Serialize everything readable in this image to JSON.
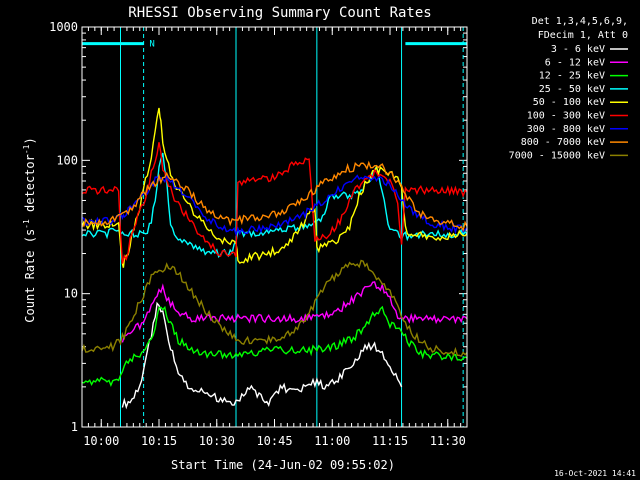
{
  "chart_data": {
    "type": "line",
    "title": "RHESSI Observing Summary Count Rates",
    "xlabel": "Start Time (24-Jun-02 09:55:02)",
    "ylabel_main": "Count Rate (s",
    "ylabel_sup1": "-1",
    "ylabel_mid": " detector",
    "ylabel_sup2": "-1",
    "ylabel_end": ")",
    "y_scale": "log",
    "ylim": [
      1,
      1000
    ],
    "xlim_min": [
      0,
      100
    ],
    "y_ticks": [
      {
        "value": 1,
        "label": "1"
      },
      {
        "value": 10,
        "label": "10"
      },
      {
        "value": 100,
        "label": "100"
      },
      {
        "value": 1000,
        "label": "1000"
      }
    ],
    "x_ticks": [
      {
        "value": 5,
        "label": "10:00"
      },
      {
        "value": 20,
        "label": "10:15"
      },
      {
        "value": 35,
        "label": "10:30"
      },
      {
        "value": 50,
        "label": "10:45"
      },
      {
        "value": 65,
        "label": "11:00"
      },
      {
        "value": 80,
        "label": "11:15"
      },
      {
        "value": 95,
        "label": "11:30"
      }
    ],
    "legend_header": [
      "Det 1,3,4,5,6,9,",
      "FDecim 1, Att 0"
    ],
    "footer_date": "16-Oct-2021 14:41",
    "night_marker": "N",
    "flags": [
      {
        "x0": 0,
        "x1": 16,
        "y": 750
      },
      {
        "x0": 84,
        "x1": 100,
        "y": 750
      }
    ],
    "dashed_lines": [
      16,
      99
    ],
    "solid_lines": [
      10,
      40,
      61,
      83
    ],
    "series": [
      {
        "name": "3 - 6 keV",
        "color": "#ffffff",
        "x": [
          10.5,
          12,
          14,
          16,
          18,
          19.5,
          21,
          23,
          25,
          28,
          32,
          36,
          40,
          44,
          48,
          52,
          56,
          60,
          64,
          68,
          70,
          72,
          74,
          76,
          78,
          80,
          81.5,
          83
        ],
        "values": [
          1.5,
          1.5,
          1.8,
          2.6,
          5,
          8,
          7,
          4,
          2.5,
          2,
          1.8,
          1.6,
          1.5,
          2,
          1.5,
          2,
          1.8,
          2.2,
          2,
          2.5,
          3,
          3.5,
          4,
          4,
          3.5,
          2.8,
          2.5,
          2
        ]
      },
      {
        "name": "6 - 12 keV",
        "color": "#ff00ff",
        "x": [
          10.5,
          12,
          14,
          16,
          18,
          20,
          21,
          22,
          24,
          26,
          28,
          30,
          32,
          35,
          40,
          45,
          50,
          55,
          60,
          64,
          68,
          72,
          76,
          78,
          80,
          82,
          84,
          86,
          88,
          90,
          92,
          94,
          96,
          98,
          100
        ],
        "values": [
          4.5,
          5,
          5.5,
          6,
          8,
          10,
          11,
          9,
          8,
          7,
          6.5,
          6.5,
          6.5,
          6.5,
          6.5,
          6.5,
          6.5,
          6.5,
          6.5,
          7,
          8,
          10,
          12,
          11,
          9,
          7,
          6.5,
          6.5,
          6.5,
          6.5,
          6.5,
          6.5,
          6.5,
          6.5,
          6.5
        ]
      },
      {
        "name": "12 - 25 keV",
        "color": "#00ff00",
        "x": [
          0,
          2,
          4,
          6,
          8,
          10,
          11,
          13,
          15,
          17,
          19,
          20,
          21,
          23,
          25,
          27,
          29,
          32,
          35,
          40,
          45,
          50,
          55,
          60,
          65,
          70,
          73,
          76,
          78,
          80,
          83,
          86,
          88,
          90,
          92,
          94,
          96,
          98,
          100
        ],
        "values": [
          2.3,
          2.2,
          2.3,
          2.2,
          2.2,
          2.3,
          3,
          3.2,
          3.5,
          4,
          5.5,
          7.5,
          8,
          6,
          4.5,
          4,
          3.8,
          3.5,
          3.5,
          3.5,
          3.6,
          3.8,
          3.7,
          3.8,
          4,
          4.5,
          5.5,
          7,
          7.5,
          6,
          5,
          4,
          3.5,
          3.5,
          3.5,
          3.3,
          3.4,
          3.3,
          3.3
        ]
      },
      {
        "name": "25 - 50 keV",
        "color": "#00ffff",
        "x": [
          0,
          2,
          4,
          6,
          8,
          9.5,
          10.5,
          12,
          14,
          16,
          17,
          18,
          19,
          20,
          21,
          22,
          23,
          24,
          25,
          27,
          29,
          31,
          33,
          35,
          37,
          39,
          40.5,
          42,
          45,
          48,
          51,
          54,
          57,
          60,
          62,
          63,
          64,
          65,
          66,
          68,
          70,
          72,
          73,
          74,
          75,
          76,
          77,
          78,
          79,
          80,
          82,
          84,
          86,
          88,
          90,
          92,
          94,
          96,
          98,
          100
        ],
        "values": [
          28,
          28,
          28,
          28,
          29,
          29,
          28,
          28,
          28,
          29,
          30,
          35,
          50,
          90,
          110,
          70,
          35,
          28,
          26,
          25,
          23,
          21,
          20,
          20,
          21,
          20,
          28,
          28,
          29,
          29,
          30,
          31,
          32,
          33,
          35,
          40,
          50,
          55,
          55,
          55,
          55,
          57,
          60,
          70,
          75,
          90,
          80,
          60,
          40,
          30,
          28,
          27,
          28,
          28,
          27,
          28,
          28,
          28,
          28,
          28
        ]
      },
      {
        "name": "50 - 100 keV",
        "color": "#ffff00",
        "x": [
          0,
          2,
          4,
          6,
          8,
          9.5,
          10.5,
          11,
          12,
          13,
          15,
          17,
          18,
          19,
          20,
          20.5,
          21,
          22,
          23,
          24,
          26,
          28,
          30,
          32,
          34,
          36,
          38,
          40,
          40.5,
          42,
          45,
          48,
          50,
          52,
          54,
          55,
          57,
          59,
          60.5,
          61,
          63,
          65,
          67,
          69,
          70,
          71,
          72,
          74,
          76,
          78,
          80,
          82,
          83,
          84,
          86,
          88,
          90,
          92,
          94,
          96,
          98,
          100
        ],
        "values": [
          33,
          33,
          33,
          33,
          34,
          34,
          16,
          17,
          20,
          28,
          45,
          80,
          110,
          160,
          250,
          200,
          140,
          100,
          80,
          65,
          55,
          45,
          38,
          33,
          29,
          26,
          24,
          23,
          18,
          18,
          19,
          20,
          21,
          22,
          24,
          28,
          32,
          40,
          45,
          22,
          23,
          24,
          26,
          30,
          35,
          45,
          55,
          70,
          82,
          85,
          80,
          70,
          60,
          30,
          28,
          28,
          27,
          27,
          27,
          27,
          28,
          28
        ]
      },
      {
        "name": "100 - 300 keV",
        "color": "#ff0000",
        "x": [
          0,
          2,
          4,
          6,
          8,
          9.5,
          10.5,
          11,
          12,
          13,
          15,
          17,
          18,
          19,
          20,
          21,
          22,
          23,
          24,
          26,
          28,
          30,
          32,
          34,
          36,
          38,
          40,
          40.5,
          42,
          45,
          48,
          50,
          52,
          54,
          55,
          57,
          59,
          60.5,
          61,
          63,
          65,
          67,
          69,
          70,
          72,
          74,
          76,
          78,
          80,
          82,
          83,
          84,
          86,
          88,
          90,
          92,
          94,
          96,
          98,
          100
        ],
        "values": [
          60,
          60,
          60,
          60,
          60,
          60,
          16,
          18,
          20,
          30,
          40,
          60,
          80,
          100,
          130,
          90,
          75,
          60,
          50,
          42,
          36,
          30,
          25,
          22,
          20,
          20,
          20,
          70,
          70,
          70,
          72,
          75,
          80,
          90,
          95,
          100,
          105,
          25,
          25,
          27,
          30,
          35,
          45,
          55,
          65,
          75,
          80,
          78,
          70,
          50,
          22,
          60,
          58,
          60,
          58,
          60,
          58,
          60,
          58,
          58
        ]
      },
      {
        "name": "300 - 800 keV",
        "color": "#0000ff",
        "x": [
          0,
          2,
          4,
          6,
          8,
          9.5,
          10.5,
          11,
          12,
          13,
          15,
          17,
          18,
          19,
          20,
          21,
          22,
          23,
          24,
          26,
          28,
          30,
          32,
          35,
          38,
          40,
          42,
          45,
          48,
          50,
          52,
          54,
          56,
          58,
          60,
          62,
          64,
          66,
          68,
          70,
          72,
          74,
          76,
          78,
          80,
          82,
          84,
          86,
          88,
          90,
          92,
          94,
          96,
          98,
          100
        ],
        "values": [
          35,
          35,
          35,
          35,
          35,
          38,
          38,
          40,
          42,
          45,
          50,
          58,
          63,
          70,
          72,
          73,
          72,
          70,
          66,
          58,
          50,
          44,
          38,
          33,
          30,
          29,
          30,
          30,
          31,
          32,
          34,
          36,
          38,
          40,
          43,
          48,
          55,
          60,
          65,
          70,
          74,
          76,
          75,
          72,
          65,
          55,
          48,
          42,
          38,
          35,
          33,
          32,
          31,
          31,
          31
        ]
      },
      {
        "name": "800 - 7000 keV",
        "color": "#ff8800",
        "x": [
          0,
          2,
          4,
          6,
          8,
          10,
          12,
          14,
          16,
          18,
          20,
          22,
          24,
          26,
          28,
          30,
          32,
          35,
          38,
          40,
          42,
          45,
          48,
          50,
          52,
          54,
          56,
          58,
          60,
          62,
          64,
          66,
          68,
          70,
          72,
          74,
          76,
          78,
          80,
          82,
          84,
          86,
          88,
          90,
          92,
          94,
          96,
          98,
          100
        ],
        "values": [
          34,
          34,
          34,
          35,
          36,
          38,
          42,
          48,
          56,
          65,
          72,
          75,
          72,
          66,
          58,
          50,
          44,
          38,
          35,
          35,
          36,
          37,
          38,
          39,
          41,
          44,
          47,
          52,
          58,
          65,
          72,
          78,
          84,
          88,
          90,
          92,
          91,
          88,
          80,
          68,
          55,
          46,
          40,
          36,
          34,
          33,
          33,
          32,
          32
        ]
      },
      {
        "name": "7000 - 15000 keV",
        "color": "#8b8000",
        "x": [
          0,
          2,
          4,
          6,
          8,
          10,
          12,
          14,
          16,
          18,
          20,
          22,
          24,
          26,
          28,
          30,
          32,
          35,
          38,
          40,
          42,
          45,
          48,
          50,
          52,
          54,
          56,
          58,
          60,
          62,
          64,
          66,
          68,
          70,
          72,
          74,
          76,
          78,
          80,
          82,
          84,
          86,
          88,
          90,
          92,
          94,
          96,
          98,
          100
        ],
        "values": [
          3.8,
          3.8,
          3.8,
          3.9,
          4,
          4.5,
          5.5,
          7.5,
          10,
          13,
          15,
          16,
          15,
          13,
          11,
          9,
          7.5,
          6,
          5,
          4.5,
          4.4,
          4.4,
          4.5,
          4.6,
          4.8,
          5,
          5.5,
          6.5,
          8,
          10,
          12,
          14,
          15.5,
          16.5,
          17,
          16,
          14,
          12,
          10,
          8,
          6,
          5,
          4.5,
          4,
          3.8,
          3.7,
          3.7,
          3.6,
          3.6
        ]
      }
    ]
  }
}
